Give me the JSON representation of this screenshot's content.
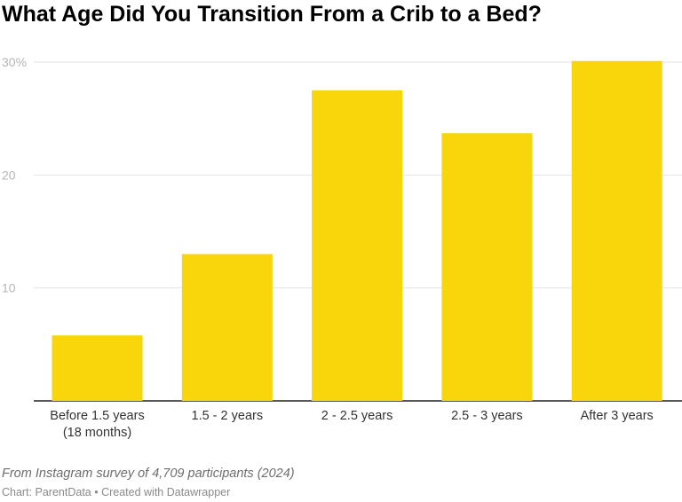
{
  "title": "What Age Did You Transition From a Crib to a Bed?",
  "note": "From Instagram survey of 4,709 participants (2024)",
  "byline": "Chart: ParentData • Created with Datawrapper",
  "colors": {
    "bar": "#f9d50b",
    "grid": "#e3e3e3",
    "axis": "#222222",
    "tick": "#b5b5b5",
    "label": "#333333"
  },
  "chart_data": {
    "type": "bar",
    "categories": [
      [
        "Before 1.5 years",
        "(18 months)"
      ],
      [
        "1.5 - 2 years"
      ],
      [
        "2 - 2.5 years"
      ],
      [
        "2.5 - 3 years"
      ],
      [
        "After 3 years"
      ]
    ],
    "values": [
      5.8,
      13.0,
      27.5,
      23.7,
      30.1
    ],
    "ylim": [
      0,
      30
    ],
    "yticks": [
      10,
      20,
      30
    ],
    "ytick_labels": [
      "10",
      "20",
      "30%"
    ],
    "title": "What Age Did You Transition From a Crib to a Bed?",
    "xlabel": "",
    "ylabel": "",
    "grid": true
  }
}
